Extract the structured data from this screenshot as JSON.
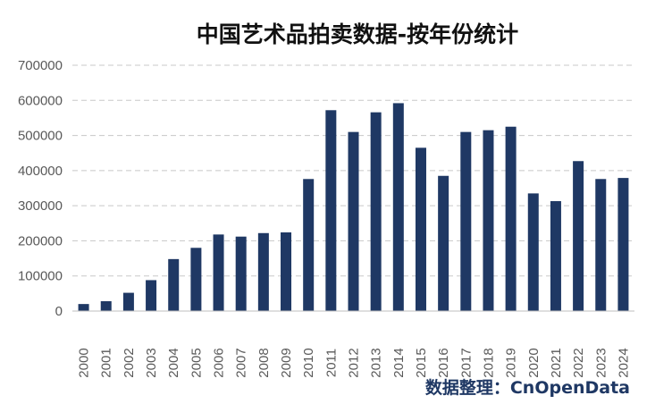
{
  "chart_data": {
    "type": "bar",
    "title": "中国艺术品拍卖数据-按年份统计",
    "xlabel": "",
    "ylabel": "",
    "ylim": [
      0,
      700000
    ],
    "yticks": [
      0,
      100000,
      200000,
      300000,
      400000,
      500000,
      600000,
      700000
    ],
    "grid": true,
    "legend": "none",
    "categories": [
      "2000",
      "2001",
      "2002",
      "2003",
      "2004",
      "2005",
      "2006",
      "2007",
      "2008",
      "2009",
      "2010",
      "2011",
      "2012",
      "2013",
      "2014",
      "2015",
      "2016",
      "2017",
      "2018",
      "2019",
      "2020",
      "2021",
      "2022",
      "2023",
      "2024"
    ],
    "values": [
      20000,
      28000,
      52000,
      88000,
      148000,
      180000,
      218000,
      212000,
      222000,
      224000,
      376000,
      572000,
      510000,
      566000,
      592000,
      465000,
      385000,
      510000,
      515000,
      525000,
      335000,
      313000,
      427000,
      376000,
      379000
    ],
    "bar_color": "#1f3864",
    "source_note": "数据整理：CnOpenData"
  }
}
